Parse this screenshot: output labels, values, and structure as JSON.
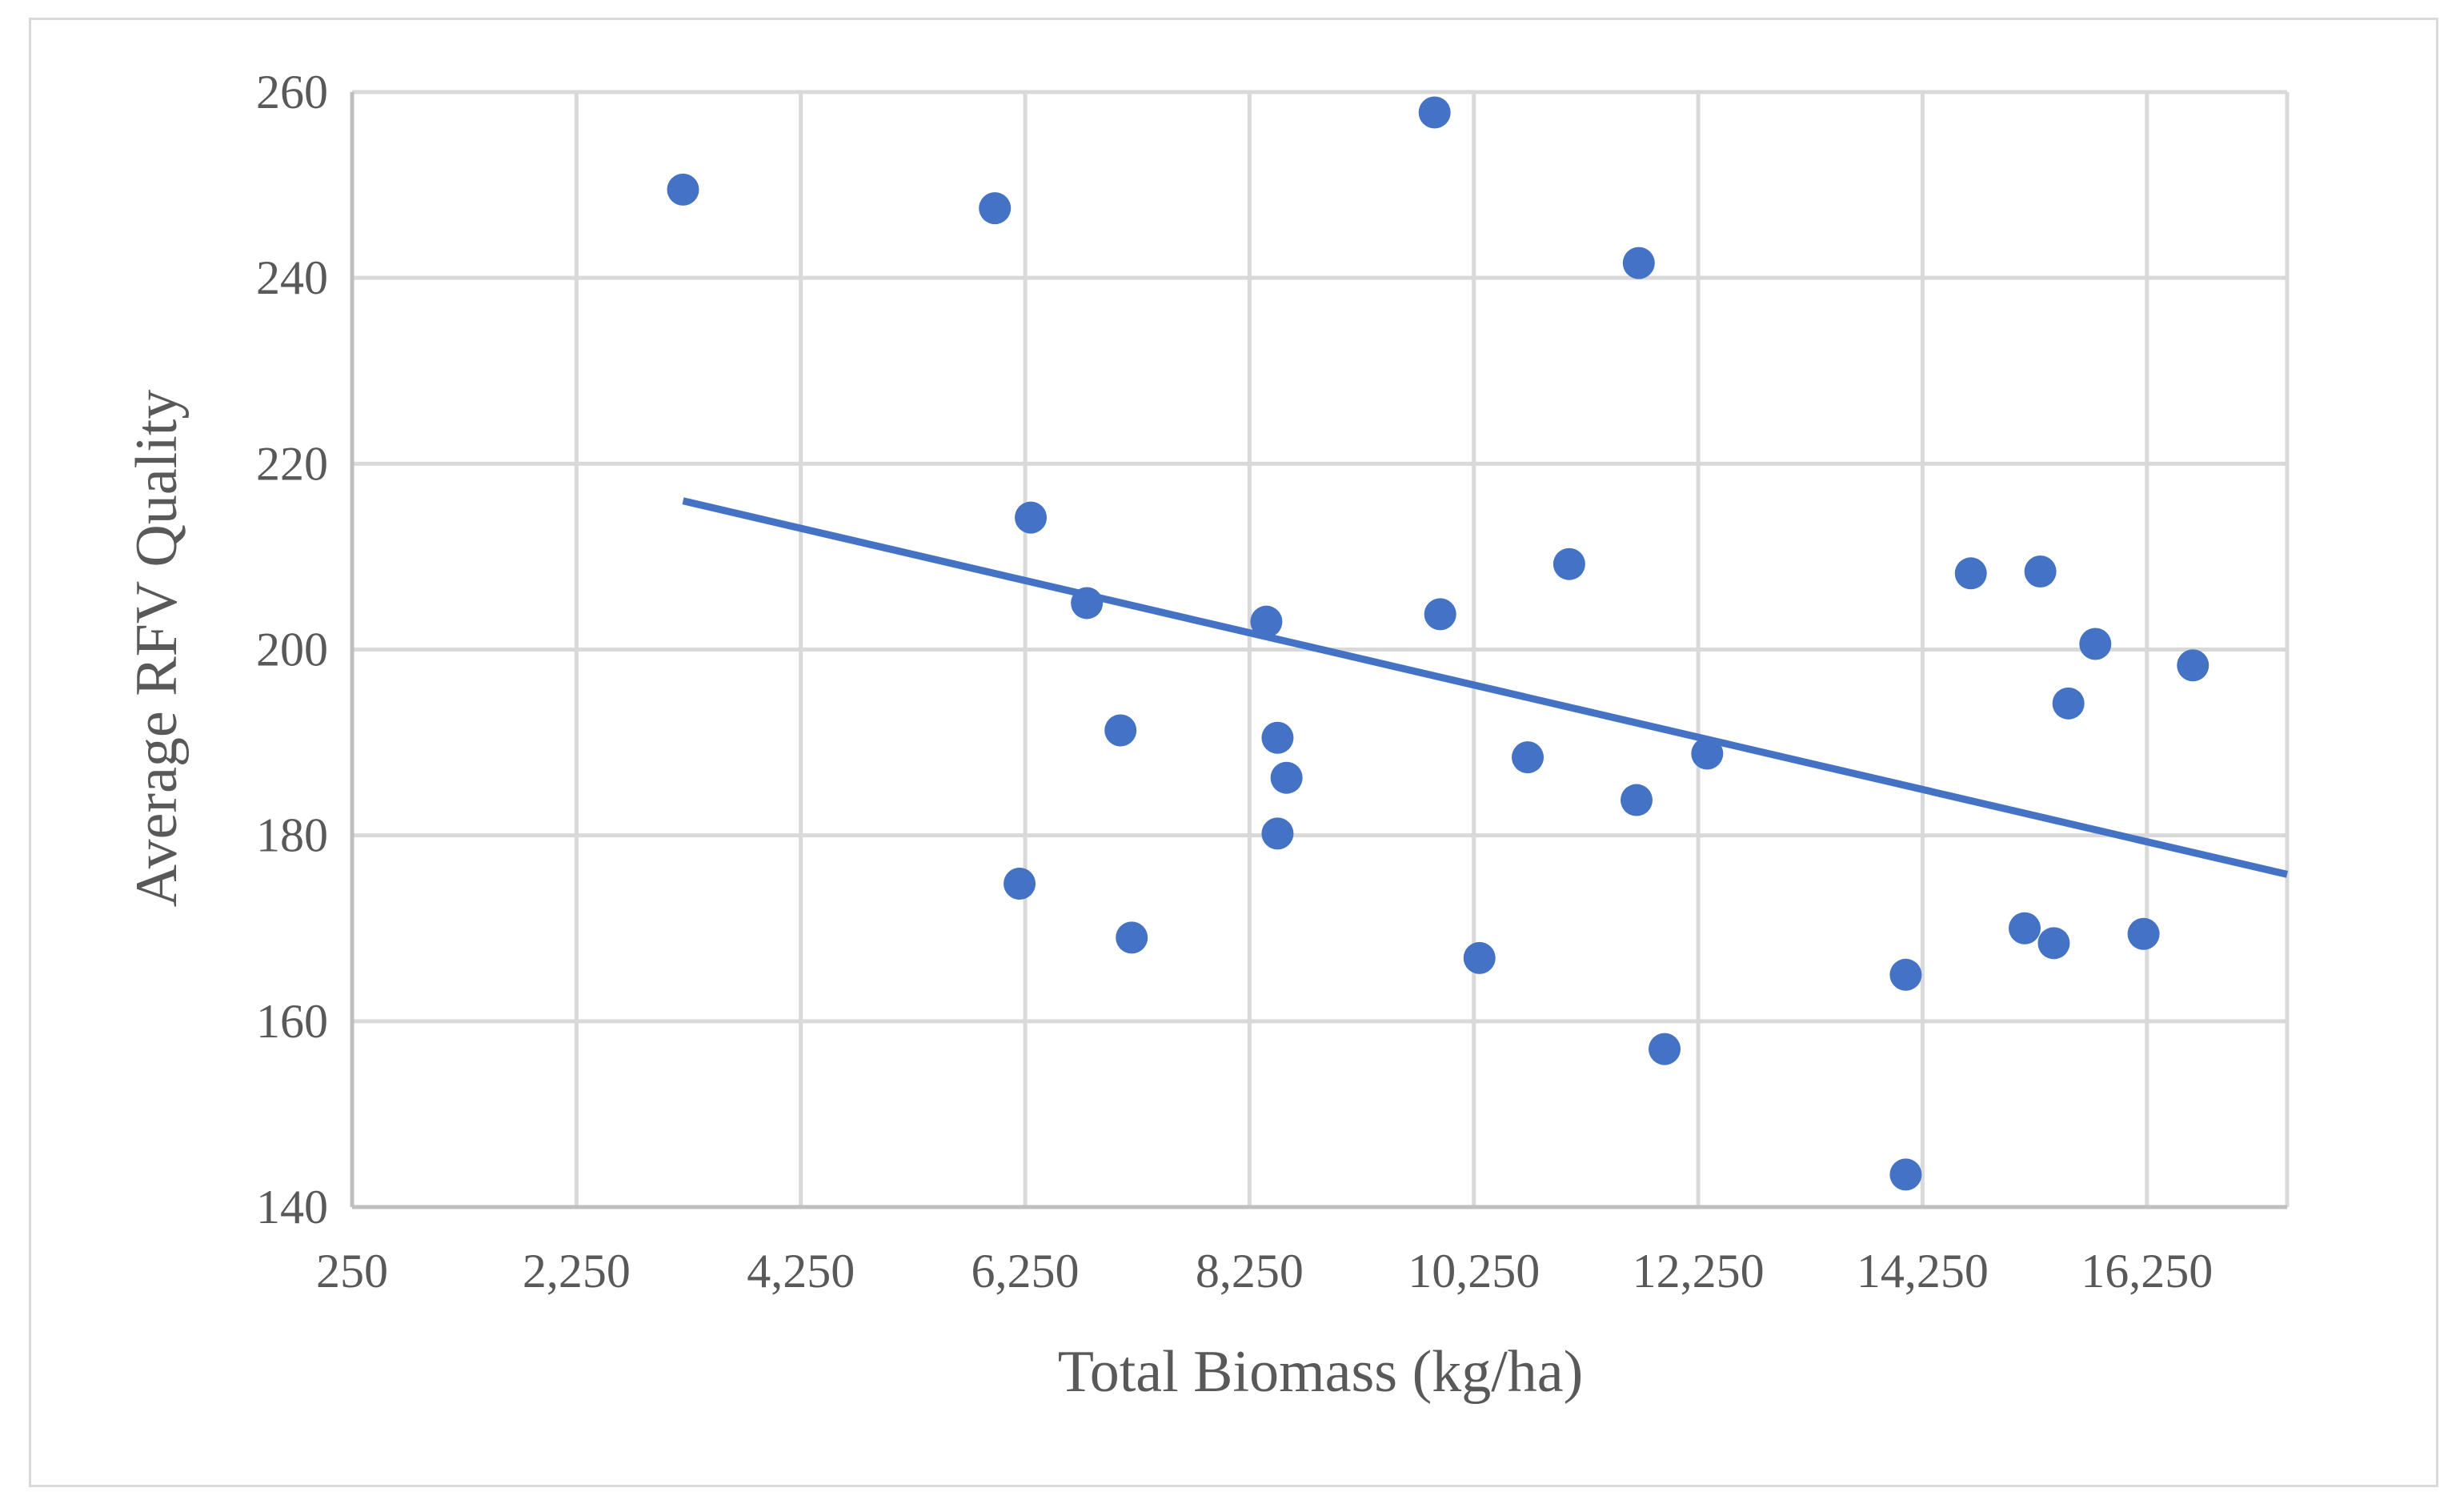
{
  "chart_data": {
    "type": "scatter",
    "title": "",
    "xlabel": "Total Biomass (kg/ha)",
    "ylabel": "Average RFV Quality",
    "xlim": [
      250,
      17500
    ],
    "ylim": [
      140,
      260
    ],
    "x_ticks": [
      250,
      2250,
      4250,
      6250,
      8250,
      10250,
      12250,
      14250,
      16250
    ],
    "x_tick_labels": [
      "250",
      "2,250",
      "4,250",
      "6,250",
      "8,250",
      "10,250",
      "12,250",
      "14,250",
      "16,250"
    ],
    "y_ticks": [
      140,
      160,
      180,
      200,
      220,
      240,
      260
    ],
    "y_tick_labels": [
      "140",
      "160",
      "180",
      "200",
      "220",
      "240",
      "260"
    ],
    "grid": true,
    "legend": "none",
    "series": [
      {
        "name": "Average RFV Quality",
        "x": [
          3200,
          5980,
          6300,
          6200,
          6800,
          7100,
          7200,
          8400,
          8500,
          8500,
          8580,
          9900,
          9950,
          10300,
          10730,
          11100,
          11700,
          11720,
          11950,
          12330,
          14100,
          14100,
          14680,
          15160,
          15300,
          15420,
          15550,
          15790,
          16220,
          16660
        ],
        "y": [
          249.5,
          247.5,
          214.2,
          174.8,
          205.0,
          191.3,
          169.0,
          203.0,
          190.5,
          180.2,
          186.2,
          257.8,
          203.8,
          166.8,
          188.4,
          209.2,
          183.8,
          241.6,
          157.0,
          188.8,
          143.5,
          165.0,
          208.2,
          170.0,
          208.4,
          168.4,
          194.2,
          200.6,
          169.4,
          198.3
        ]
      }
    ],
    "trendline": {
      "type": "linear",
      "x": [
        3200,
        17500
      ],
      "y": [
        216.0,
        175.8
      ]
    },
    "colors": {
      "marker": "#4472c4",
      "trendline": "#4472c4",
      "grid": "#d9d9d9",
      "text": "#595959",
      "frame": "#d9d9d9"
    }
  }
}
